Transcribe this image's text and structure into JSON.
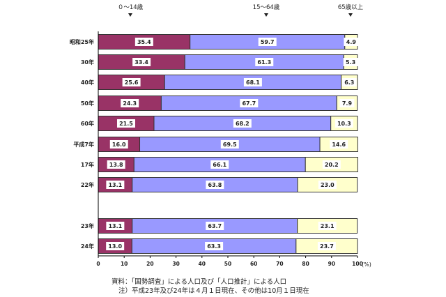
{
  "chart_data": {
    "type": "bar",
    "orientation": "horizontal",
    "stacked": true,
    "categories": [
      "昭和25年",
      "30年",
      "40年",
      "50年",
      "60年",
      "平成7年",
      "17年",
      "22年",
      "23年",
      "24年"
    ],
    "series": [
      {
        "name": "０～14歳",
        "color": "#993366",
        "values": [
          35.4,
          33.4,
          25.6,
          24.3,
          21.5,
          16.0,
          13.8,
          13.1,
          13.1,
          13.0
        ]
      },
      {
        "name": "15～64歳",
        "color": "#9999ff",
        "values": [
          59.7,
          61.3,
          68.1,
          67.7,
          68.2,
          69.5,
          66.1,
          63.8,
          63.7,
          63.3
        ]
      },
      {
        "name": "65歳以上",
        "color": "#ffffcc",
        "values": [
          4.9,
          5.3,
          6.3,
          7.9,
          10.3,
          14.6,
          20.2,
          23.0,
          23.1,
          23.7
        ]
      }
    ],
    "xlim": [
      0,
      100
    ],
    "xticks": [
      "0",
      "10",
      "20",
      "30",
      "40",
      "50",
      "60",
      "70",
      "80",
      "90",
      "100"
    ],
    "xunit": "(%)",
    "grid": false,
    "legend": "top"
  },
  "notes": [
    "資料：「国勢調査」による人口及び「人口推計」による人口",
    "注）平成23年及び24年は４月１日現在、その他は10月１日現在"
  ]
}
